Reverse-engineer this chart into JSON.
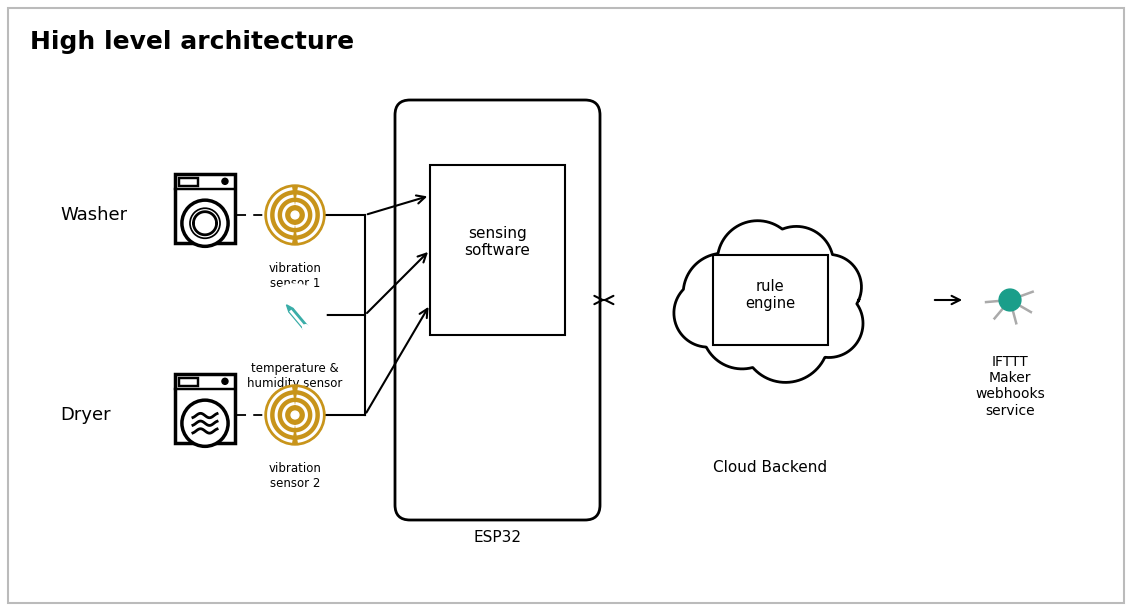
{
  "title": "High level architecture",
  "title_fontsize": 18,
  "title_fontweight": "bold",
  "bg_color": "#ffffff",
  "text_color": "#000000",
  "washer_label": "Washer",
  "dryer_label": "Dryer",
  "vib_sensor1_label": "vibration\nsensor 1",
  "vib_sensor2_label": "vibration\nsensor 2",
  "temp_sensor_label": "temperature &\nhumidity sensor",
  "esp32_label": "ESP32",
  "sensing_label": "sensing\nsoftware",
  "cloud_label": "Cloud Backend",
  "rule_engine_label": "rule\nengine",
  "ifttt_label": "IFTTT\nMaker\nwebhooks\nservice",
  "gold_color": "#C8941A",
  "teal_color": "#3AADA8",
  "node_gray": "#AAAAAA",
  "node_center": "#1A9E8A",
  "border_color": "#BBBBBB"
}
